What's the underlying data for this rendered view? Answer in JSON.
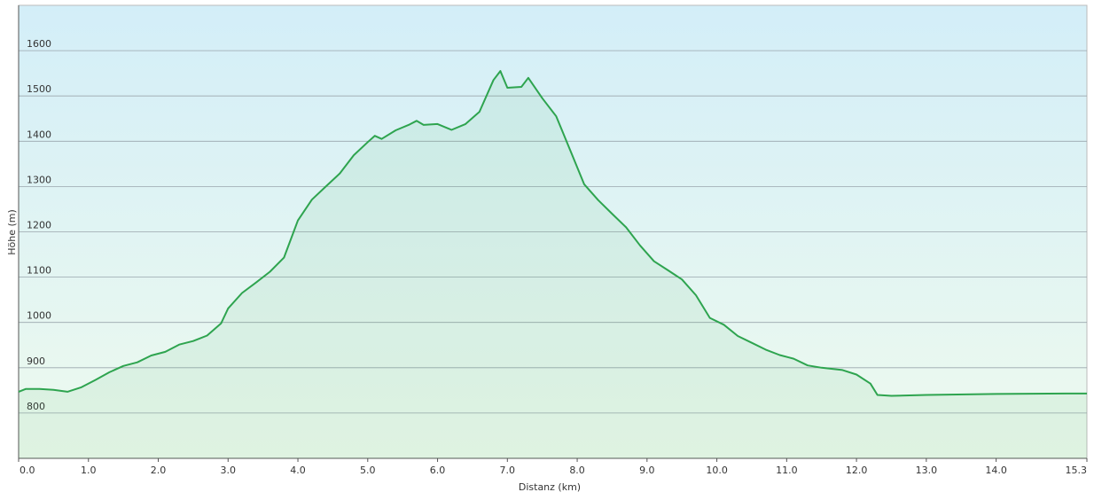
{
  "chart_data": {
    "type": "area",
    "x_label": "Distanz  (km)",
    "y_label": "Höhe (m)",
    "x": [
      0,
      0.1,
      0.3,
      0.5,
      0.7,
      0.9,
      1.1,
      1.3,
      1.5,
      1.7,
      1.9,
      2.1,
      2.3,
      2.5,
      2.7,
      2.9,
      3.0,
      3.2,
      3.4,
      3.6,
      3.8,
      4.0,
      4.2,
      4.4,
      4.6,
      4.8,
      5.0,
      5.1,
      5.2,
      5.4,
      5.6,
      5.7,
      5.8,
      6.0,
      6.2,
      6.4,
      6.6,
      6.8,
      6.9,
      7.0,
      7.2,
      7.3,
      7.5,
      7.7,
      7.9,
      8.1,
      8.3,
      8.5,
      8.7,
      8.9,
      9.1,
      9.3,
      9.5,
      9.7,
      9.9,
      10.1,
      10.3,
      10.5,
      10.7,
      10.9,
      11.1,
      11.3,
      11.5,
      11.8,
      12.0,
      12.2,
      12.3,
      12.5,
      13.0,
      14.0,
      15.0,
      15.3
    ],
    "series": [
      {
        "name": "Höhe",
        "color": "#2ea44f",
        "values": [
          847,
          853,
          853,
          851,
          847,
          857,
          873,
          890,
          904,
          912,
          927,
          935,
          951,
          959,
          971,
          998,
          1031,
          1065,
          1088,
          1112,
          1143,
          1225,
          1271,
          1300,
          1329,
          1369,
          1398,
          1412,
          1405,
          1424,
          1437,
          1445,
          1436,
          1438,
          1425,
          1438,
          1465,
          1535,
          1555,
          1518,
          1520,
          1540,
          1495,
          1455,
          1380,
          1305,
          1270,
          1240,
          1210,
          1170,
          1135,
          1115,
          1095,
          1060,
          1010,
          995,
          970,
          955,
          940,
          928,
          920,
          905,
          900,
          895,
          885,
          865,
          840,
          838,
          840,
          842,
          843,
          843
        ]
      }
    ],
    "xlim": [
      0,
      15.3
    ],
    "ylim": [
      700,
      1700
    ],
    "xticks": [
      {
        "value": 0,
        "label": "0.0"
      },
      {
        "value": 1,
        "label": "1.0"
      },
      {
        "value": 2,
        "label": "2.0"
      },
      {
        "value": 3,
        "label": "3.0"
      },
      {
        "value": 4,
        "label": "4.0"
      },
      {
        "value": 5,
        "label": "5.0"
      },
      {
        "value": 6,
        "label": "6.0"
      },
      {
        "value": 7,
        "label": "7.0"
      },
      {
        "value": 8,
        "label": "8.0"
      },
      {
        "value": 9,
        "label": "9.0"
      },
      {
        "value": 10,
        "label": "10.0"
      },
      {
        "value": 11,
        "label": "11.0"
      },
      {
        "value": 12,
        "label": "12.0"
      },
      {
        "value": 13,
        "label": "13.0"
      },
      {
        "value": 14,
        "label": "14.0"
      },
      15.3
    ],
    "yticks": [
      800,
      900,
      1000,
      1100,
      1200,
      1300,
      1400,
      1500,
      1600
    ],
    "grid": true
  }
}
